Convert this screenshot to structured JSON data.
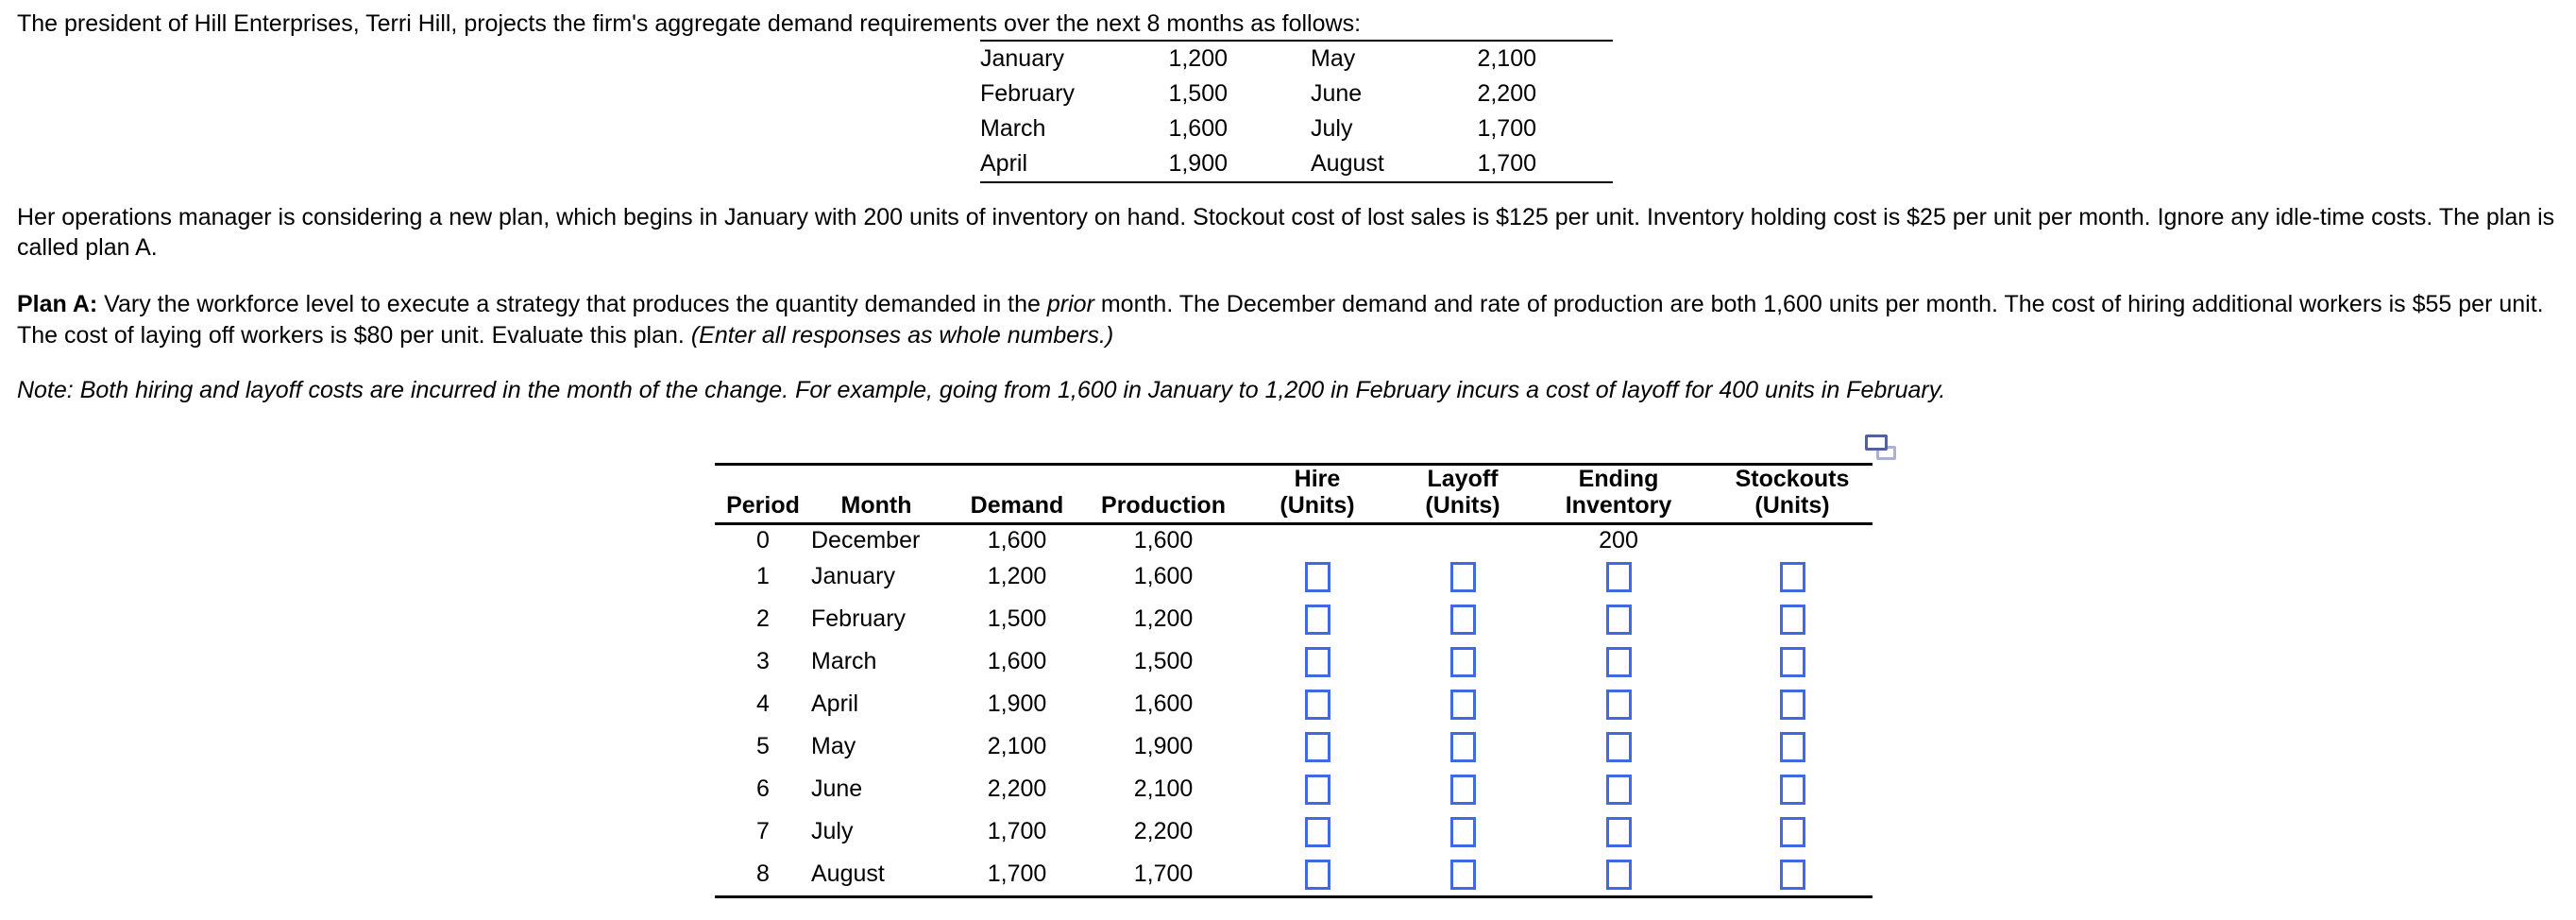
{
  "title": "The president of Hill Enterprises, Terri Hill, projects the firm's aggregate demand requirements over the next 8 months as follows:",
  "demand_preview": {
    "rows": [
      {
        "month_a": "January",
        "value_a": "1,200",
        "month_b": "May",
        "value_b": "2,100"
      },
      {
        "month_a": "February",
        "value_a": "1,500",
        "month_b": "June",
        "value_b": "2,200"
      },
      {
        "month_a": "March",
        "value_a": "1,600",
        "month_b": "July",
        "value_b": "1,700"
      },
      {
        "month_a": "April",
        "value_a": "1,900",
        "month_b": "August",
        "value_b": "1,700"
      }
    ]
  },
  "plan_intro": "Her operations manager is considering a new plan, which begins in January with 200 units of inventory on hand. Stockout cost of lost sales is $125 per unit. Inventory holding cost is $25 per unit per month. Ignore any idle-time costs. The plan is called plan A.",
  "plan_a": {
    "label": "Plan A:",
    "text_1": " Vary the workforce level to execute a strategy that produces the quantity demanded in the ",
    "italic_1": "prior",
    "text_2": " month. The December demand and rate of production are both 1,600 units per month. The cost of hiring additional workers is $55 per unit. The cost of laying off workers is $80 per unit. Evaluate this plan. ",
    "italic_2": "(Enter all responses as whole numbers.)"
  },
  "note": "Note: Both hiring and layoff costs are incurred in the month of the change. For example, going from 1,600 in January to 1,200 in February incurs a cost of layoff for 400 units in February.",
  "icons": {
    "copy_icon": "copy-icon"
  },
  "colors": {
    "input_border": "#4169e1",
    "icon_front": "#51609f",
    "icon_back": "#a9b2d4"
  },
  "plan_table": {
    "headers": {
      "period": "Period",
      "month": "Month",
      "demand": "Demand",
      "production": "Production",
      "hire_1": "Hire",
      "hire_2": "(Units)",
      "layoff_1": "Layoff",
      "layoff_2": "(Units)",
      "ending_1": "Ending",
      "ending_2": "Inventory",
      "stockouts_1": "Stockouts",
      "stockouts_2": "(Units)"
    },
    "rows": [
      {
        "period": "0",
        "month": "December",
        "demand": "1,600",
        "production": "1,600",
        "hire": "",
        "layoff": "",
        "ending_inventory": "200",
        "stockouts": ""
      },
      {
        "period": "1",
        "month": "January",
        "demand": "1,200",
        "production": "1,600"
      },
      {
        "period": "2",
        "month": "February",
        "demand": "1,500",
        "production": "1,200"
      },
      {
        "period": "3",
        "month": "March",
        "demand": "1,600",
        "production": "1,500"
      },
      {
        "period": "4",
        "month": "April",
        "demand": "1,900",
        "production": "1,600"
      },
      {
        "period": "5",
        "month": "May",
        "demand": "2,100",
        "production": "1,900"
      },
      {
        "period": "6",
        "month": "June",
        "demand": "2,200",
        "production": "2,100"
      },
      {
        "period": "7",
        "month": "July",
        "demand": "1,700",
        "production": "2,200"
      },
      {
        "period": "8",
        "month": "August",
        "demand": "1,700",
        "production": "1,700"
      }
    ]
  }
}
